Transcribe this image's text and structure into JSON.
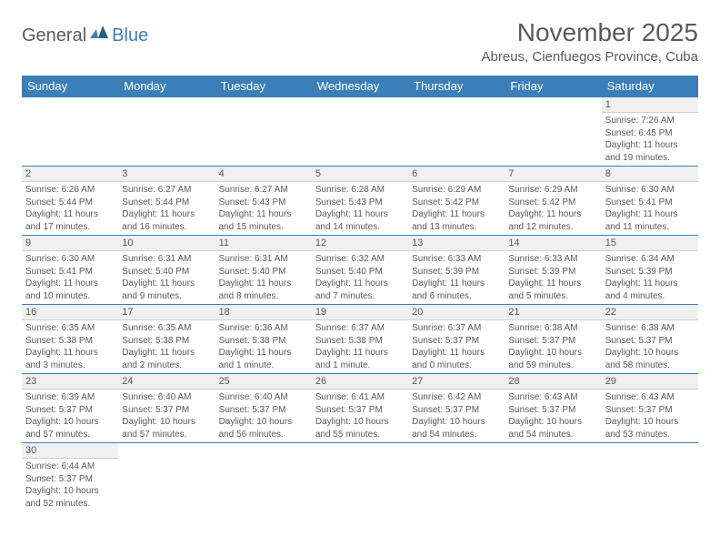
{
  "logo": {
    "text1": "General",
    "text2": "Blue"
  },
  "title": "November 2025",
  "location": "Abreus, Cienfuegos Province, Cuba",
  "colors": {
    "header_bg": "#3b7fb8",
    "header_text": "#ffffff",
    "border": "#3b7fb8",
    "daynum_bg": "#f0f0f0",
    "text": "#5a5a5a"
  },
  "weekdays": [
    "Sunday",
    "Monday",
    "Tuesday",
    "Wednesday",
    "Thursday",
    "Friday",
    "Saturday"
  ],
  "days": [
    {
      "n": 1,
      "sunrise": "7:26 AM",
      "sunset": "6:45 PM",
      "daylight": "11 hours and 19 minutes."
    },
    {
      "n": 2,
      "sunrise": "6:26 AM",
      "sunset": "5:44 PM",
      "daylight": "11 hours and 17 minutes."
    },
    {
      "n": 3,
      "sunrise": "6:27 AM",
      "sunset": "5:44 PM",
      "daylight": "11 hours and 16 minutes."
    },
    {
      "n": 4,
      "sunrise": "6:27 AM",
      "sunset": "5:43 PM",
      "daylight": "11 hours and 15 minutes."
    },
    {
      "n": 5,
      "sunrise": "6:28 AM",
      "sunset": "5:43 PM",
      "daylight": "11 hours and 14 minutes."
    },
    {
      "n": 6,
      "sunrise": "6:29 AM",
      "sunset": "5:42 PM",
      "daylight": "11 hours and 13 minutes."
    },
    {
      "n": 7,
      "sunrise": "6:29 AM",
      "sunset": "5:42 PM",
      "daylight": "11 hours and 12 minutes."
    },
    {
      "n": 8,
      "sunrise": "6:30 AM",
      "sunset": "5:41 PM",
      "daylight": "11 hours and 11 minutes."
    },
    {
      "n": 9,
      "sunrise": "6:30 AM",
      "sunset": "5:41 PM",
      "daylight": "11 hours and 10 minutes."
    },
    {
      "n": 10,
      "sunrise": "6:31 AM",
      "sunset": "5:40 PM",
      "daylight": "11 hours and 9 minutes."
    },
    {
      "n": 11,
      "sunrise": "6:31 AM",
      "sunset": "5:40 PM",
      "daylight": "11 hours and 8 minutes."
    },
    {
      "n": 12,
      "sunrise": "6:32 AM",
      "sunset": "5:40 PM",
      "daylight": "11 hours and 7 minutes."
    },
    {
      "n": 13,
      "sunrise": "6:33 AM",
      "sunset": "5:39 PM",
      "daylight": "11 hours and 6 minutes."
    },
    {
      "n": 14,
      "sunrise": "6:33 AM",
      "sunset": "5:39 PM",
      "daylight": "11 hours and 5 minutes."
    },
    {
      "n": 15,
      "sunrise": "6:34 AM",
      "sunset": "5:39 PM",
      "daylight": "11 hours and 4 minutes."
    },
    {
      "n": 16,
      "sunrise": "6:35 AM",
      "sunset": "5:38 PM",
      "daylight": "11 hours and 3 minutes."
    },
    {
      "n": 17,
      "sunrise": "6:35 AM",
      "sunset": "5:38 PM",
      "daylight": "11 hours and 2 minutes."
    },
    {
      "n": 18,
      "sunrise": "6:36 AM",
      "sunset": "5:38 PM",
      "daylight": "11 hours and 1 minute."
    },
    {
      "n": 19,
      "sunrise": "6:37 AM",
      "sunset": "5:38 PM",
      "daylight": "11 hours and 1 minute."
    },
    {
      "n": 20,
      "sunrise": "6:37 AM",
      "sunset": "5:37 PM",
      "daylight": "11 hours and 0 minutes."
    },
    {
      "n": 21,
      "sunrise": "6:38 AM",
      "sunset": "5:37 PM",
      "daylight": "10 hours and 59 minutes."
    },
    {
      "n": 22,
      "sunrise": "6:38 AM",
      "sunset": "5:37 PM",
      "daylight": "10 hours and 58 minutes."
    },
    {
      "n": 23,
      "sunrise": "6:39 AM",
      "sunset": "5:37 PM",
      "daylight": "10 hours and 57 minutes."
    },
    {
      "n": 24,
      "sunrise": "6:40 AM",
      "sunset": "5:37 PM",
      "daylight": "10 hours and 57 minutes."
    },
    {
      "n": 25,
      "sunrise": "6:40 AM",
      "sunset": "5:37 PM",
      "daylight": "10 hours and 56 minutes."
    },
    {
      "n": 26,
      "sunrise": "6:41 AM",
      "sunset": "5:37 PM",
      "daylight": "10 hours and 55 minutes."
    },
    {
      "n": 27,
      "sunrise": "6:42 AM",
      "sunset": "5:37 PM",
      "daylight": "10 hours and 54 minutes."
    },
    {
      "n": 28,
      "sunrise": "6:43 AM",
      "sunset": "5:37 PM",
      "daylight": "10 hours and 54 minutes."
    },
    {
      "n": 29,
      "sunrise": "6:43 AM",
      "sunset": "5:37 PM",
      "daylight": "10 hours and 53 minutes."
    },
    {
      "n": 30,
      "sunrise": "6:44 AM",
      "sunset": "5:37 PM",
      "daylight": "10 hours and 52 minutes."
    }
  ],
  "first_weekday_index": 6,
  "labels": {
    "sunrise": "Sunrise:",
    "sunset": "Sunset:",
    "daylight": "Daylight:"
  }
}
